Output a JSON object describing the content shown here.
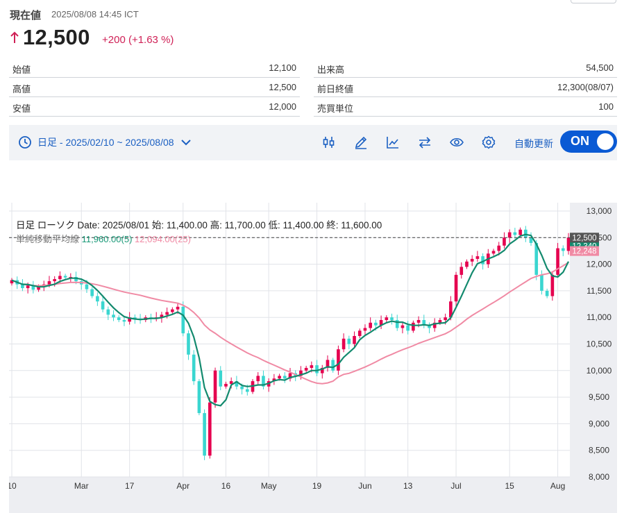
{
  "header": {
    "current_label": "現在値",
    "timestamp": "2025/08/08 14:45 ICT",
    "price": "12,500",
    "change": "+200 (+1.63 %)",
    "direction_icon": "arrow-up-icon",
    "up_color": "#cf1f55"
  },
  "stats": {
    "left": [
      {
        "label": "始値",
        "value": "12,100"
      },
      {
        "label": "高値",
        "value": "12,500"
      },
      {
        "label": "安値",
        "value": "12,000"
      }
    ],
    "right": [
      {
        "label": "出来高",
        "value": "54,500"
      },
      {
        "label": "前日終値",
        "value": "12,300(08/07)"
      },
      {
        "label": "売買単位",
        "value": "100"
      }
    ]
  },
  "toolbar": {
    "period_label": "日足 - 2025/02/10 ~ 2025/08/08",
    "tool_icons": [
      "candlestick-icon",
      "pencil-icon",
      "line-chart-icon",
      "compare-arrows-icon",
      "eye-icon",
      "gear-icon"
    ],
    "auto_refresh_label": "自動更新",
    "toggle_label": "ON",
    "accent_color": "#0a5ad4"
  },
  "chart_data": {
    "type": "candlestick",
    "info_line": "日足 ローソク   Date: 2025/08/01 始: 11,400.00 高: 11,700.00 低: 11,400.00 終: 11,600.00",
    "ma_name": "単純移動平均線",
    "ma5_label": "11,960.00(5)",
    "ma25_label": "12,094.00(25)",
    "x_tick_labels": [
      "10",
      "Mar",
      "17",
      "Apr",
      "16",
      "May",
      "19",
      "Jun",
      "13",
      "Jul",
      "15",
      "Aug"
    ],
    "x_tick_index": [
      0,
      13,
      22,
      32,
      40,
      48,
      57,
      66,
      74,
      83,
      93,
      102
    ],
    "ylim": [
      8000,
      13000
    ],
    "y_ticks": [
      8000,
      8500,
      9000,
      9500,
      10000,
      10500,
      11000,
      11500,
      12000,
      12500,
      13000
    ],
    "y_tick_labels": [
      "8,000",
      "8,500",
      "9,000",
      "9,500",
      "10,000",
      "10,500",
      "11,000",
      "11,500",
      "12,000",
      "12,500",
      "13,000"
    ],
    "last_price": 12500,
    "last_price_label": "12,500",
    "ma5_last": 12340,
    "ma5_last_label": "12,340",
    "ma25_last": 12248,
    "ma25_last_label": "12,248",
    "closes": [
      11700,
      11620,
      11550,
      11600,
      11520,
      11580,
      11620,
      11680,
      11720,
      11780,
      11750,
      11760,
      11680,
      11620,
      11530,
      11400,
      11300,
      11150,
      11050,
      11000,
      10950,
      10920,
      11000,
      10980,
      10950,
      11000,
      10980,
      11000,
      11050,
      11100,
      11150,
      11200,
      10700,
      10300,
      9800,
      9200,
      8400,
      9400,
      10000,
      9700,
      9750,
      9800,
      9700,
      9650,
      9600,
      9800,
      9900,
      9700,
      9800,
      9850,
      9900,
      9850,
      9950,
      9900,
      10000,
      10050,
      10100,
      9950,
      10050,
      10200,
      10000,
      10400,
      10600,
      10500,
      10650,
      10750,
      10800,
      10900,
      10850,
      10950,
      11000,
      10950,
      10800,
      10850,
      10750,
      10900,
      10950,
      10850,
      10800,
      10900,
      10950,
      11000,
      11300,
      11800,
      11950,
      12050,
      12100,
      12150,
      12000,
      12200,
      12250,
      12350,
      12500,
      12600,
      12550,
      12650,
      12500,
      12400,
      11800,
      11500,
      11400,
      11800,
      12300,
      12250,
      12500
    ]
  }
}
